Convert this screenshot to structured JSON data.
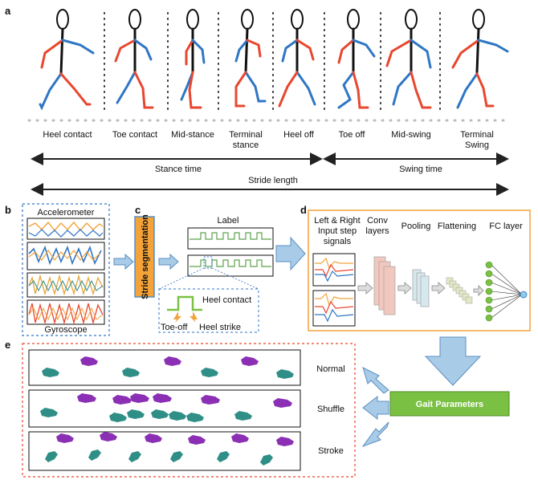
{
  "panel_letters": {
    "a": "a",
    "b": "b",
    "c": "c",
    "d": "d",
    "e": "e"
  },
  "gait_phases": [
    {
      "line1": "Heel contact",
      "line2": ""
    },
    {
      "line1": "Toe contact",
      "line2": ""
    },
    {
      "line1": "Mid-stance",
      "line2": ""
    },
    {
      "line1": "Terminal",
      "line2": "stance"
    },
    {
      "line1": "Heel off",
      "line2": ""
    },
    {
      "line1": "Toe off",
      "line2": ""
    },
    {
      "line1": "Mid-swing",
      "line2": ""
    },
    {
      "line1": "Terminal",
      "line2": "Swing"
    }
  ],
  "timing": {
    "stance_time": "Stance time",
    "swing_time": "Swing time",
    "stride_length": "Stride length"
  },
  "sensors": {
    "accelerometer": "Accelerometer",
    "gyroscope": "Gyroscope"
  },
  "segmentation": {
    "box_label": "Stride segmentation",
    "signal_label": "Label",
    "heel_contact": "Heel contact",
    "toe_off": "Toe-off",
    "heel_strike": "Heel strike"
  },
  "network": {
    "input_line1": "Left & Right",
    "input_line2": "Input step",
    "input_line3": "signals",
    "conv_line1": "Conv",
    "conv_line2": "layers",
    "pooling": "Pooling",
    "flattening": "Flattening",
    "fc_layer": "FC layer"
  },
  "gait_parameters": "Gait Parameters",
  "conditions": [
    "Normal",
    "Shuffle",
    "Stroke"
  ],
  "colors": {
    "left_leg": "#e8472f",
    "right_leg": "#2f76c4",
    "accent_orange": "#f4a23a",
    "green": "#7ac143",
    "blue_arrow": "#a8cbe8",
    "teal": "#2f8f86",
    "purple": "#8b2fb5"
  }
}
